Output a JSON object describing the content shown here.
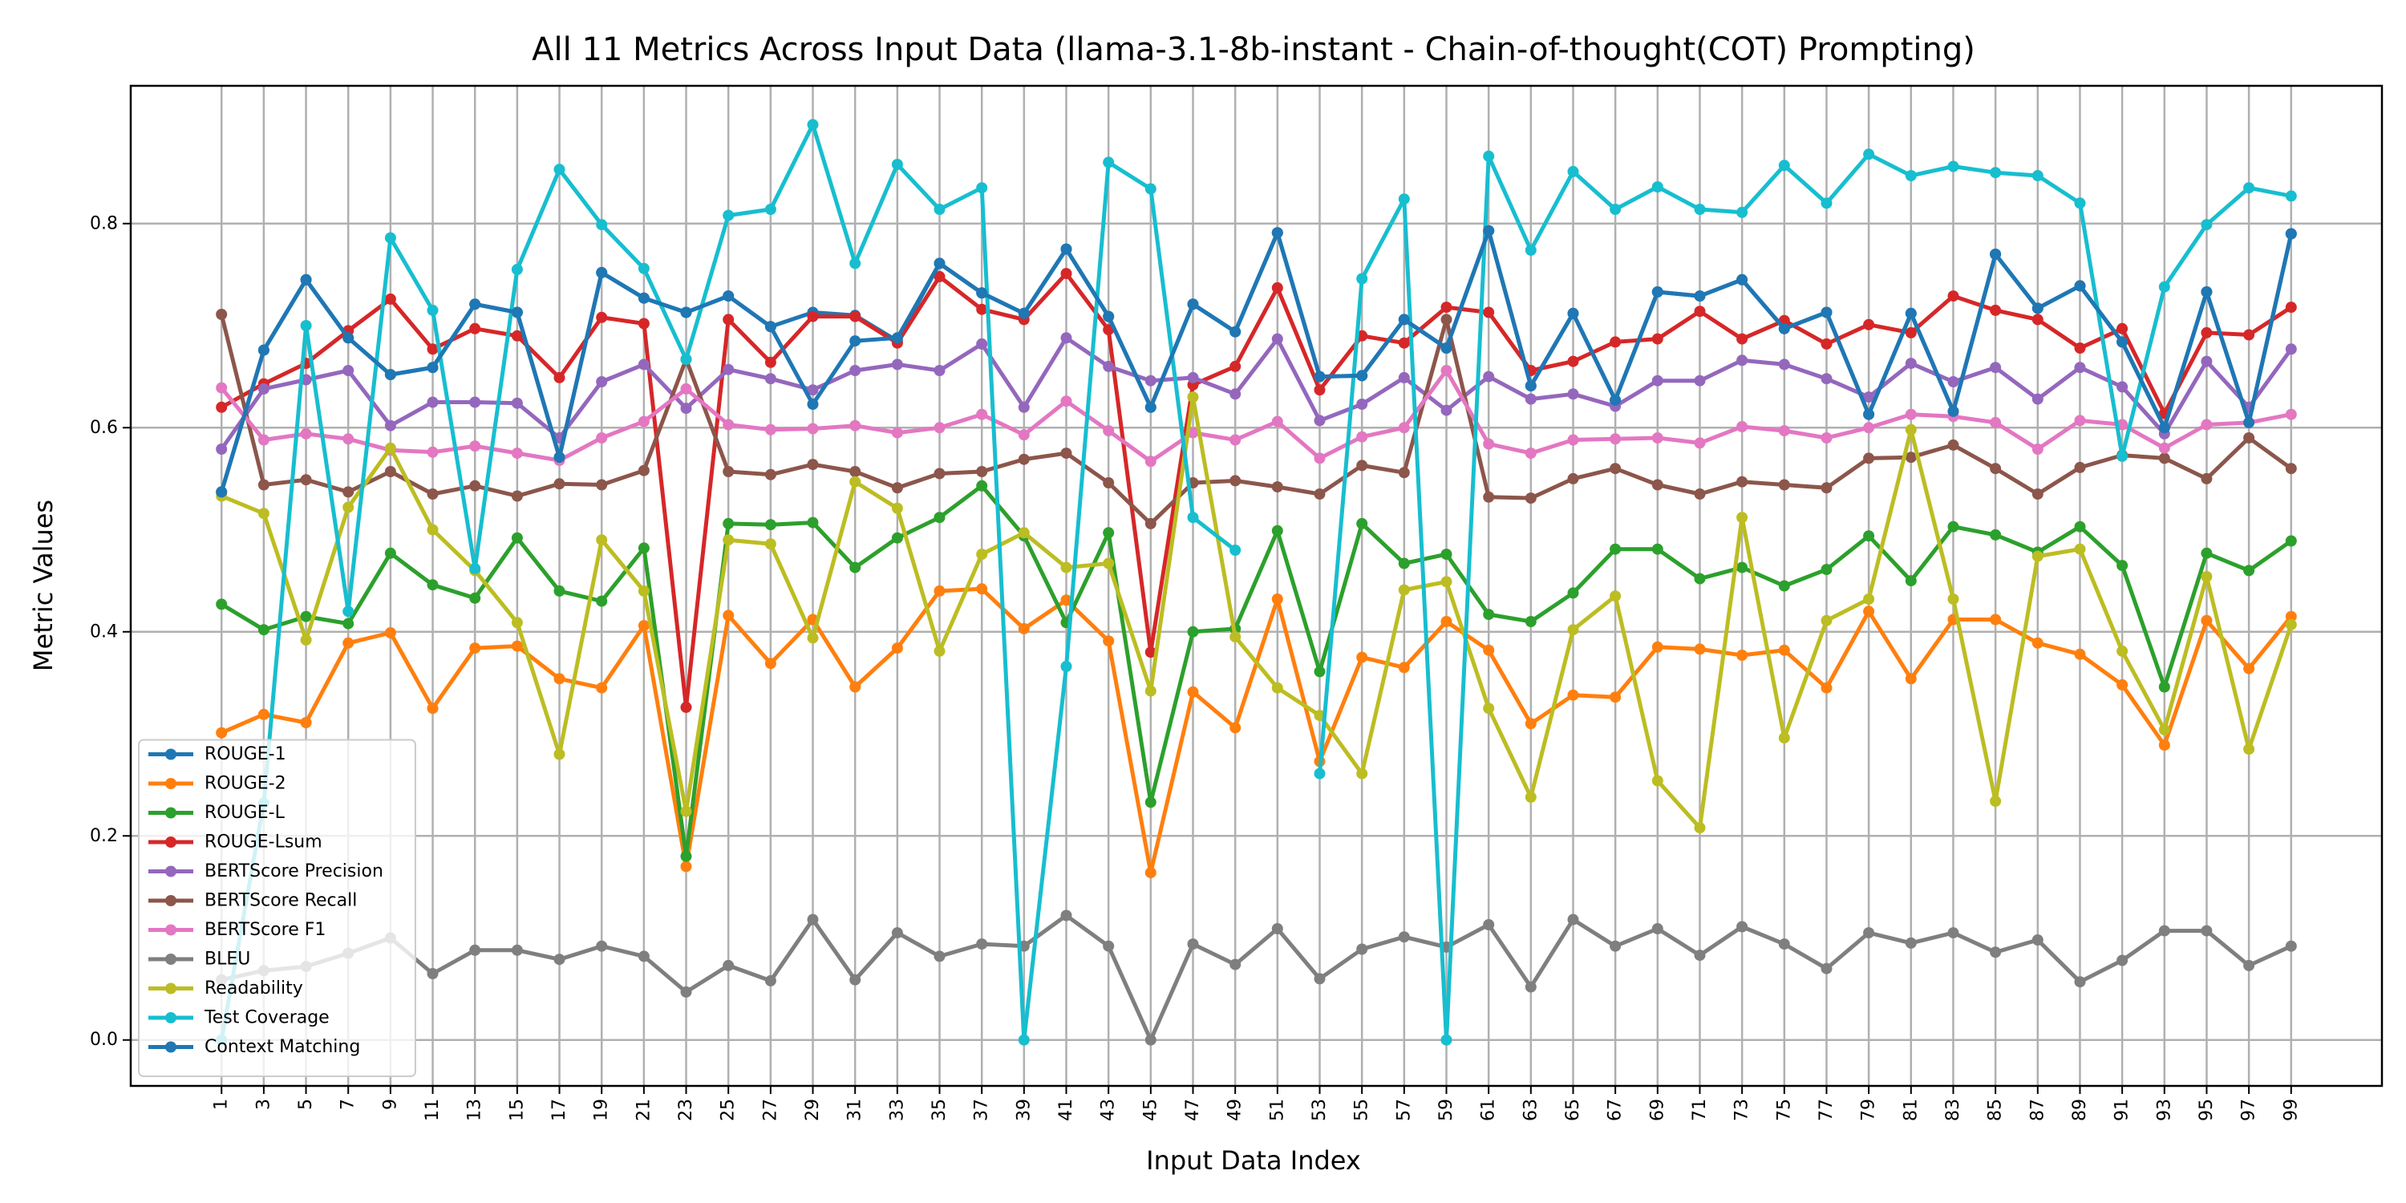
{
  "chart_data": {
    "type": "line",
    "title": "All 11 Metrics Across Input Data (llama-3.1-8b-instant - Chain-of-thought(COT) Prompting)",
    "xlabel": "Input Data Index",
    "ylabel": "Metric Values",
    "x": [
      1,
      3,
      5,
      7,
      9,
      11,
      13,
      15,
      17,
      19,
      21,
      23,
      25,
      27,
      29,
      31,
      33,
      35,
      37,
      39,
      41,
      43,
      45,
      47,
      49,
      51,
      53,
      55,
      57,
      59,
      61,
      63,
      65,
      67,
      69,
      71,
      73,
      75,
      77,
      79,
      81,
      83,
      85,
      87,
      89,
      91,
      93,
      95,
      97,
      99
    ],
    "x_tick_labels": [
      "1",
      "3",
      "5",
      "7",
      "9",
      "11",
      "13",
      "15",
      "17",
      "19",
      "21",
      "23",
      "25",
      "27",
      "29",
      "31",
      "33",
      "35",
      "37",
      "39",
      "41",
      "43",
      "45",
      "47",
      "49",
      "51",
      "53",
      "55",
      "57",
      "59",
      "61",
      "63",
      "65",
      "67",
      "69",
      "71",
      "73",
      "75",
      "77",
      "79",
      "81",
      "83",
      "85",
      "87",
      "89",
      "91",
      "93",
      "95",
      "97",
      "99"
    ],
    "xlim": [
      -3.3,
      103.3
    ],
    "ylim": [
      -0.045,
      0.935
    ],
    "y_ticks": [
      0.0,
      0.2,
      0.4,
      0.6,
      0.8
    ],
    "y_tick_labels": [
      "0.0",
      "0.2",
      "0.4",
      "0.6",
      "0.8"
    ],
    "grid": true,
    "legend_position": "lower-left",
    "series": [
      {
        "name": "ROUGE-1",
        "color": "#1f77b4",
        "values": [
          0.537,
          0.676,
          0.745,
          0.688,
          0.652,
          0.659,
          0.721,
          0.713,
          0.571,
          0.752,
          0.727,
          0.713,
          0.729,
          0.699,
          0.713,
          0.71,
          0.685,
          0.761,
          0.732,
          0.712,
          0.775,
          0.709,
          0.62,
          0.721,
          0.694,
          0.791,
          0.65,
          0.651,
          0.706,
          0.678,
          0.793,
          0.641,
          0.712,
          0.627,
          0.733,
          0.729,
          0.745,
          0.697,
          0.713,
          0.613,
          0.712,
          0.616,
          0.77,
          0.717,
          0.739,
          0.684,
          0.6,
          0.733,
          0.605,
          0.79
        ]
      },
      {
        "name": "ROUGE-2",
        "color": "#ff7f0e",
        "values": [
          0.301,
          0.319,
          0.311,
          0.389,
          0.399,
          0.325,
          0.384,
          0.386,
          0.354,
          0.345,
          0.406,
          0.17,
          0.416,
          0.369,
          0.412,
          0.346,
          0.384,
          0.44,
          0.442,
          0.403,
          0.431,
          0.391,
          0.164,
          0.341,
          0.306,
          0.432,
          0.273,
          0.375,
          0.365,
          0.41,
          0.382,
          0.31,
          0.338,
          0.336,
          0.385,
          0.383,
          0.377,
          0.382,
          0.345,
          0.42,
          0.354,
          0.412,
          0.412,
          0.389,
          0.378,
          0.348,
          0.289,
          0.411,
          0.364,
          0.415
        ]
      },
      {
        "name": "ROUGE-L",
        "color": "#2ca02c",
        "values": [
          0.427,
          0.402,
          0.415,
          0.408,
          0.477,
          0.446,
          0.433,
          0.492,
          0.44,
          0.43,
          0.482,
          0.18,
          0.506,
          0.505,
          0.507,
          0.463,
          0.492,
          0.512,
          0.543,
          0.494,
          0.409,
          0.497,
          0.233,
          0.4,
          0.403,
          0.499,
          0.361,
          0.506,
          0.467,
          0.476,
          0.417,
          0.41,
          0.438,
          0.481,
          0.481,
          0.452,
          0.463,
          0.445,
          0.461,
          0.494,
          0.45,
          0.503,
          0.495,
          0.478,
          0.503,
          0.465,
          0.346,
          0.477,
          0.46,
          0.489
        ]
      },
      {
        "name": "ROUGE-Lsum",
        "color": "#d62728",
        "values": [
          0.62,
          0.643,
          0.663,
          0.695,
          0.726,
          0.677,
          0.697,
          0.69,
          0.649,
          0.708,
          0.702,
          0.326,
          0.706,
          0.664,
          0.709,
          0.709,
          0.683,
          0.748,
          0.716,
          0.706,
          0.751,
          0.696,
          0.38,
          0.642,
          0.66,
          0.737,
          0.637,
          0.69,
          0.683,
          0.718,
          0.713,
          0.656,
          0.665,
          0.684,
          0.687,
          0.714,
          0.687,
          0.705,
          0.682,
          0.701,
          0.693,
          0.729,
          0.715,
          0.706,
          0.678,
          0.697,
          0.614,
          0.693,
          0.691,
          0.718
        ]
      },
      {
        "name": "BERTScore Precision",
        "color": "#9467bd",
        "values": [
          0.579,
          0.638,
          0.647,
          0.656,
          0.602,
          0.625,
          0.625,
          0.624,
          0.59,
          0.645,
          0.662,
          0.619,
          0.657,
          0.648,
          0.637,
          0.656,
          0.662,
          0.656,
          0.682,
          0.62,
          0.688,
          0.66,
          0.646,
          0.649,
          0.633,
          0.687,
          0.607,
          0.623,
          0.649,
          0.617,
          0.65,
          0.628,
          0.633,
          0.621,
          0.646,
          0.646,
          0.666,
          0.662,
          0.648,
          0.63,
          0.663,
          0.645,
          0.659,
          0.628,
          0.659,
          0.64,
          0.594,
          0.665,
          0.62,
          0.677
        ]
      },
      {
        "name": "BERTScore Recall",
        "color": "#8c564b",
        "values": [
          0.711,
          0.544,
          0.549,
          0.537,
          0.557,
          0.535,
          0.543,
          0.533,
          0.545,
          0.544,
          0.558,
          0.667,
          0.557,
          0.554,
          0.564,
          0.557,
          0.541,
          0.555,
          0.557,
          0.569,
          0.575,
          0.546,
          0.506,
          0.546,
          0.548,
          0.542,
          0.535,
          0.563,
          0.556,
          0.706,
          0.532,
          0.531,
          0.55,
          0.56,
          0.544,
          0.535,
          0.547,
          0.544,
          0.541,
          0.57,
          0.571,
          0.583,
          0.56,
          0.535,
          0.561,
          0.573,
          0.57,
          0.55,
          0.59,
          0.56
        ]
      },
      {
        "name": "BERTScore F1",
        "color": "#e377c2",
        "values": [
          0.639,
          0.588,
          0.594,
          0.589,
          0.578,
          0.576,
          0.582,
          0.575,
          0.568,
          0.59,
          0.606,
          0.638,
          0.603,
          0.598,
          0.599,
          0.602,
          0.595,
          0.6,
          0.613,
          0.593,
          0.626,
          0.597,
          0.567,
          0.595,
          0.588,
          0.606,
          0.57,
          0.591,
          0.6,
          0.656,
          0.584,
          0.575,
          0.588,
          0.589,
          0.59,
          0.585,
          0.601,
          0.597,
          0.59,
          0.6,
          0.613,
          0.611,
          0.605,
          0.579,
          0.607,
          0.603,
          0.58,
          0.603,
          0.605,
          0.613
        ]
      },
      {
        "name": "BLEU",
        "color": "#7f7f7f",
        "values": [
          0.059,
          0.068,
          0.072,
          0.085,
          0.1,
          0.065,
          0.088,
          0.088,
          0.079,
          0.092,
          0.082,
          0.047,
          0.073,
          0.058,
          0.118,
          0.059,
          0.105,
          0.082,
          0.094,
          0.092,
          0.122,
          0.092,
          0.0,
          0.094,
          0.074,
          0.109,
          0.06,
          0.089,
          0.101,
          0.091,
          0.113,
          0.052,
          0.118,
          0.092,
          0.109,
          0.083,
          0.111,
          0.094,
          0.07,
          0.105,
          0.095,
          0.105,
          0.086,
          0.098,
          0.057,
          0.078,
          0.107,
          0.107,
          0.073,
          0.092
        ]
      },
      {
        "name": "Readability",
        "color": "#bcbd22",
        "values": [
          0.533,
          0.516,
          0.392,
          0.522,
          0.58,
          0.5,
          0.46,
          0.409,
          0.28,
          0.49,
          0.44,
          0.224,
          0.49,
          0.486,
          0.394,
          0.547,
          0.521,
          0.381,
          0.476,
          0.497,
          0.463,
          0.467,
          0.342,
          0.63,
          0.395,
          0.345,
          0.318,
          0.261,
          0.441,
          0.449,
          0.325,
          0.238,
          0.402,
          0.435,
          0.254,
          0.208,
          0.512,
          0.296,
          0.411,
          0.432,
          0.598,
          0.432,
          0.234,
          0.474,
          0.481,
          0.381,
          0.304,
          0.454,
          0.285,
          0.407
        ]
      },
      {
        "name": "Test Coverage",
        "color": "#17becf",
        "values": [
          0.0,
          0.232,
          0.7,
          0.42,
          0.786,
          0.715,
          0.462,
          0.755,
          0.853,
          0.799,
          0.756,
          0.667,
          0.808,
          0.814,
          0.897,
          0.761,
          0.858,
          0.814,
          0.835,
          0.0,
          0.366,
          0.86,
          0.834,
          0.512,
          0.48,
          null,
          0.261,
          0.746,
          0.824,
          0.0,
          0.866,
          0.774,
          0.851,
          0.814,
          0.836,
          0.814,
          0.811,
          0.857,
          0.82,
          0.868,
          0.847,
          0.856,
          0.85,
          0.847,
          0.82,
          0.572,
          0.738,
          0.799,
          0.835,
          0.827
        ]
      },
      {
        "name": "Context Matching",
        "color": "#1f77b4",
        "values": [
          0.537,
          0.676,
          0.745,
          0.688,
          0.652,
          0.659,
          0.721,
          0.713,
          0.571,
          0.752,
          0.727,
          0.713,
          0.729,
          0.699,
          0.623,
          0.685,
          0.688,
          0.761,
          0.732,
          0.712,
          0.775,
          0.709,
          0.62,
          0.721,
          0.694,
          0.791,
          0.65,
          0.651,
          0.706,
          0.678,
          0.793,
          0.641,
          0.712,
          0.627,
          0.733,
          0.729,
          0.745,
          0.697,
          0.713,
          0.613,
          0.712,
          0.616,
          0.77,
          0.717,
          0.739,
          0.684,
          0.6,
          0.733,
          0.605,
          0.79
        ]
      }
    ]
  }
}
